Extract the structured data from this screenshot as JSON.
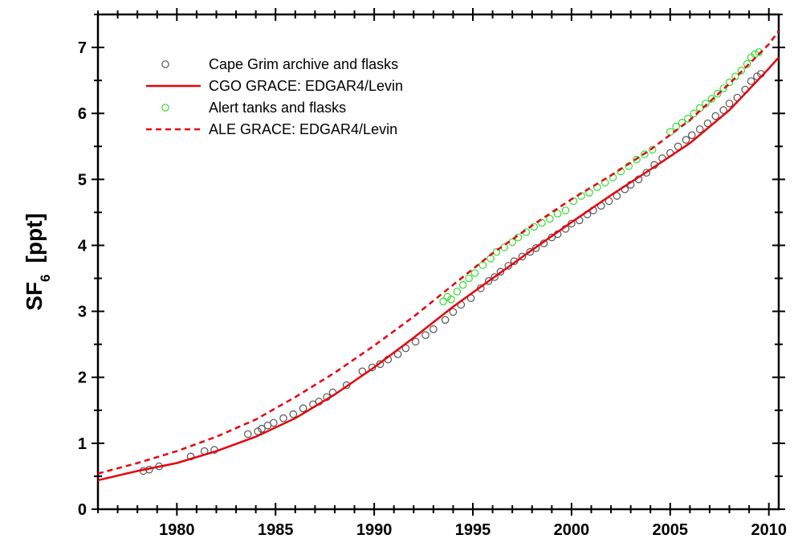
{
  "chart_data": {
    "type": "line",
    "title": "",
    "xlabel": "",
    "ylabel": "SF",
    "ylabel_subscript": "6",
    "ylabel_unit": "[ppt]",
    "xlim": [
      1976,
      2010.5
    ],
    "ylim": [
      0,
      7.5
    ],
    "xticks": [
      1980,
      1985,
      1990,
      1995,
      2000,
      2005,
      2010
    ],
    "yticks": [
      0,
      1,
      2,
      3,
      4,
      5,
      6,
      7
    ],
    "grid": false,
    "legend_position": "top-left",
    "series": [
      {
        "name": "Cape Grim archive and flasks",
        "kind": "scatter",
        "color": "#555555",
        "x": [
          1978.3,
          1978.6,
          1979.1,
          1980.7,
          1981.4,
          1981.9,
          1983.6,
          1984.1,
          1984.3,
          1984.6,
          1984.9,
          1985.4,
          1985.9,
          1986.4,
          1986.9,
          1987.2,
          1987.6,
          1987.9,
          1988.6,
          1989.4,
          1989.9,
          1990.3,
          1990.7,
          1991.2,
          1991.6,
          1992.1,
          1992.6,
          1993.0,
          1993.6,
          1994.0,
          1994.4,
          1994.9,
          1995.4,
          1995.8,
          1996.1,
          1996.4,
          1996.8,
          1997.1,
          1997.5,
          1997.9,
          1998.2,
          1998.6,
          1999.0,
          1999.3,
          1999.7,
          2000.0,
          2000.4,
          2000.8,
          2001.1,
          2001.5,
          2001.9,
          2002.3,
          2002.7,
          2003.0,
          2003.4,
          2003.8,
          2004.2,
          2004.6,
          2005.0,
          2005.4,
          2005.8,
          2006.1,
          2006.5,
          2006.9,
          2007.3,
          2007.7,
          2008.0,
          2008.4,
          2008.8,
          2009.1,
          2009.4,
          2009.6
        ],
        "y": [
          0.58,
          0.6,
          0.65,
          0.8,
          0.88,
          0.9,
          1.14,
          1.18,
          1.22,
          1.27,
          1.31,
          1.38,
          1.44,
          1.53,
          1.59,
          1.63,
          1.7,
          1.77,
          1.88,
          2.09,
          2.15,
          2.2,
          2.27,
          2.35,
          2.44,
          2.54,
          2.64,
          2.73,
          2.87,
          2.99,
          3.1,
          3.2,
          3.35,
          3.46,
          3.52,
          3.6,
          3.69,
          3.76,
          3.83,
          3.9,
          3.96,
          4.03,
          4.12,
          4.17,
          4.25,
          4.33,
          4.38,
          4.47,
          4.53,
          4.6,
          4.67,
          4.75,
          4.85,
          4.92,
          5.0,
          5.1,
          5.22,
          5.32,
          5.4,
          5.5,
          5.6,
          5.67,
          5.76,
          5.85,
          5.96,
          6.05,
          6.15,
          6.24,
          6.36,
          6.49,
          6.56,
          6.6
        ]
      },
      {
        "name": "CGO GRACE: EDGAR4/Levin",
        "kind": "line",
        "style": "solid",
        "color": "#e8000b",
        "x": [
          1976,
          1978,
          1980,
          1982,
          1984,
          1986,
          1988,
          1990,
          1992,
          1994,
          1996,
          1998,
          2000,
          2002,
          2004,
          2006,
          2008,
          2010,
          2010.5
        ],
        "y": [
          0.44,
          0.58,
          0.7,
          0.88,
          1.1,
          1.38,
          1.74,
          2.15,
          2.6,
          3.07,
          3.5,
          3.93,
          4.35,
          4.76,
          5.15,
          5.55,
          6.05,
          6.68,
          6.85
        ]
      },
      {
        "name": "Alert tanks and flasks",
        "kind": "scatter",
        "color": "#33dd33",
        "x": [
          1993.5,
          1993.7,
          1993.9,
          1994.2,
          1994.5,
          1994.8,
          1995.1,
          1995.5,
          1995.9,
          1996.2,
          1996.6,
          1997.0,
          1997.3,
          1997.7,
          1998.1,
          1998.5,
          1998.9,
          1999.3,
          1999.7,
          2000.1,
          2000.5,
          2000.9,
          2001.3,
          2001.7,
          2002.1,
          2002.5,
          2002.9,
          2003.3,
          2003.7,
          2004.1,
          2005.0,
          2005.3,
          2005.6,
          2005.9,
          2006.2,
          2006.5,
          2006.8,
          2007.1,
          2007.4,
          2007.7,
          2008.0,
          2008.3,
          2008.6,
          2008.9,
          2009.1,
          2009.3,
          2009.5
        ],
        "y": [
          3.15,
          3.22,
          3.18,
          3.3,
          3.4,
          3.5,
          3.58,
          3.7,
          3.8,
          3.9,
          3.97,
          4.05,
          4.12,
          4.2,
          4.28,
          4.34,
          4.4,
          4.48,
          4.53,
          4.67,
          4.75,
          4.8,
          4.88,
          4.95,
          5.03,
          5.12,
          5.2,
          5.3,
          5.38,
          5.45,
          5.72,
          5.8,
          5.86,
          5.92,
          6.0,
          6.08,
          6.15,
          6.22,
          6.3,
          6.38,
          6.47,
          6.56,
          6.65,
          6.75,
          6.85,
          6.9,
          6.93
        ]
      },
      {
        "name": "ALE GRACE: EDGAR4/Levin",
        "kind": "line",
        "style": "dashed",
        "color": "#e8000b",
        "x": [
          1976,
          1978,
          1980,
          1982,
          1984,
          1986,
          1988,
          1990,
          1992,
          1994,
          1996,
          1998,
          2000,
          2002,
          2004,
          2006,
          2008,
          2010,
          2010.5
        ],
        "y": [
          0.54,
          0.7,
          0.88,
          1.1,
          1.36,
          1.7,
          2.07,
          2.48,
          2.92,
          3.4,
          3.88,
          4.3,
          4.7,
          5.06,
          5.45,
          5.9,
          6.45,
          7.05,
          7.25
        ]
      }
    ]
  }
}
